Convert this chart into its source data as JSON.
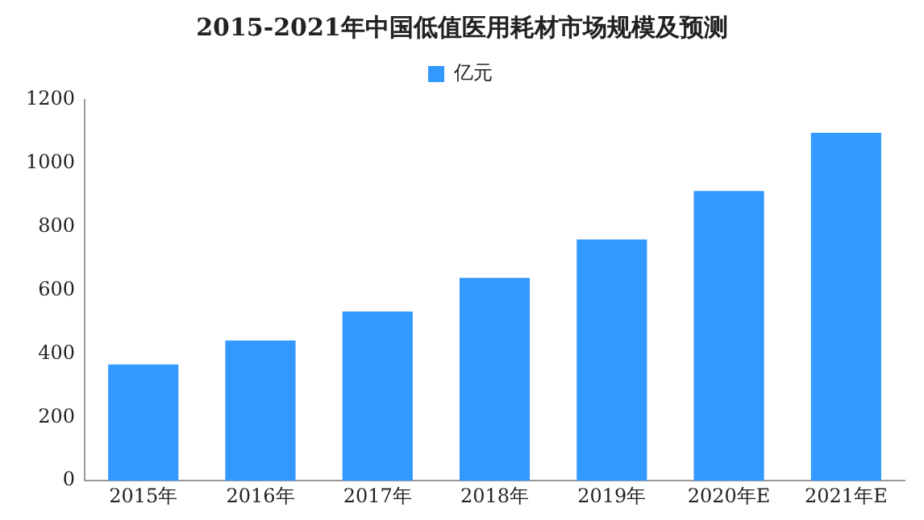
{
  "chart_data": {
    "type": "bar",
    "title": "2015-2021年中国低值医用耗材市场规模及预测",
    "categories": [
      "2015年",
      "2016年",
      "2017年",
      "2018年",
      "2019年",
      "2020年E",
      "2021年E"
    ],
    "series": [
      {
        "name": "亿元",
        "color": "#3399ff",
        "values": [
          366,
          442,
          533,
          639,
          760,
          913,
          1096
        ]
      }
    ],
    "ylim": [
      0,
      1200
    ],
    "yticks": [
      0,
      200,
      400,
      600,
      800,
      1000,
      1200
    ],
    "grid": false,
    "legend": "top"
  }
}
